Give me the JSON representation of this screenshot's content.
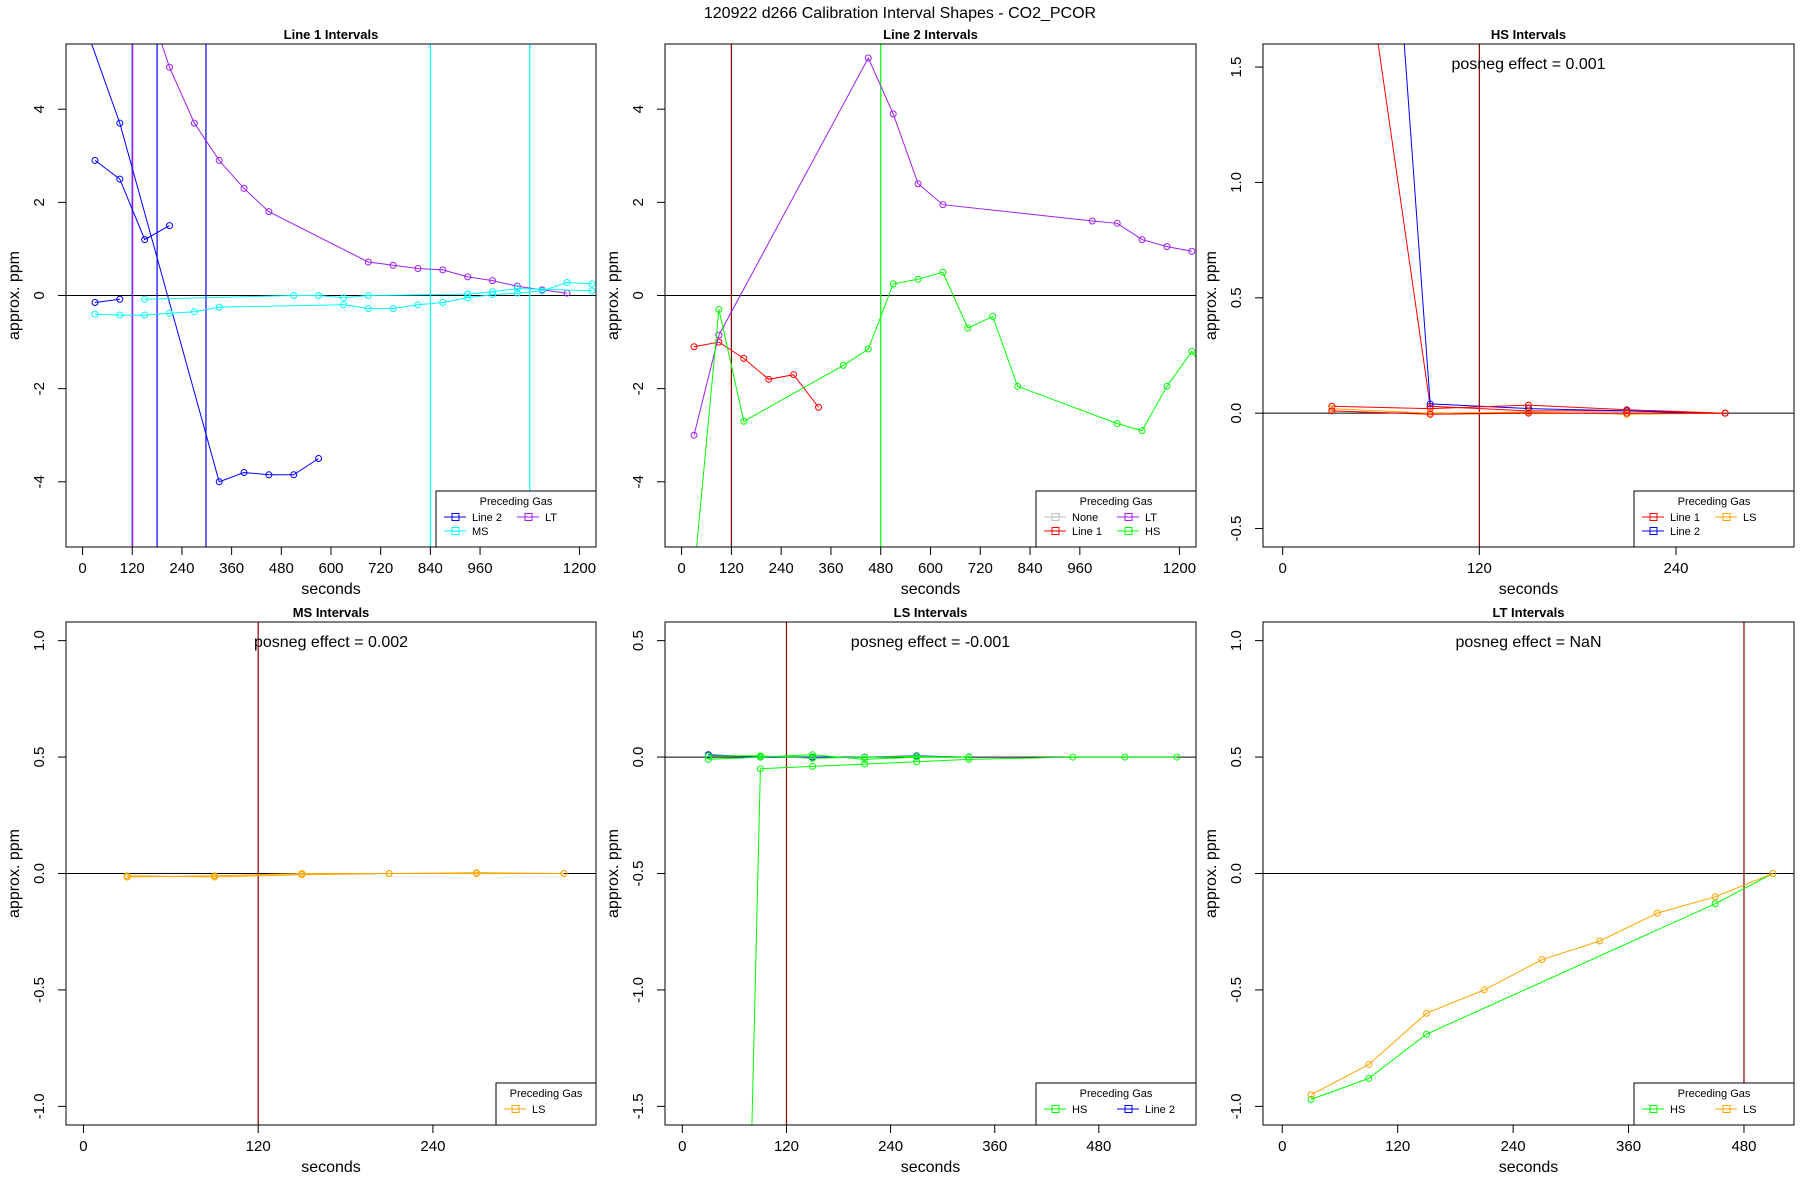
{
  "page": {
    "suptitle": "120922  d266   Calibration Interval Shapes - CO2_PCOR"
  },
  "colors": {
    "Line 1": "#ff0000",
    "Line 2": "#0000ff",
    "MS": "#00ffff",
    "LT": "#a020f0",
    "HS": "#00ff00",
    "LS": "#ffa500",
    "None": "#bebebe",
    "vline_dark": "#8b0000"
  },
  "chart_data": [
    {
      "type": "line",
      "title": "Line 1 Intervals",
      "xlabel": "seconds",
      "ylabel": "approx. ppm",
      "xlim": [
        -40,
        1240
      ],
      "ylim": [
        -5.4,
        5.4
      ],
      "xticks": [
        0,
        120,
        240,
        360,
        480,
        600,
        720,
        840,
        960,
        1200
      ],
      "yticks": [
        -4,
        -2,
        0,
        2,
        4
      ],
      "annotation": "",
      "vlines": [
        {
          "x": 120,
          "color": "#0000ff"
        },
        {
          "x": 121,
          "color": "#a020f0"
        },
        {
          "x": 180,
          "color": "#0000ff"
        },
        {
          "x": 298,
          "color": "#0000ff"
        },
        {
          "x": 840,
          "color": "#00ffff"
        },
        {
          "x": 1080,
          "color": "#00ffff"
        }
      ],
      "legend": {
        "title": "Preceding Gas",
        "cols": 2,
        "entries": [
          {
            "label": "Line 2",
            "color": "#0000ff"
          },
          {
            "label": "LT",
            "color": "#a020f0"
          },
          {
            "label": "MS",
            "color": "#00ffff"
          }
        ]
      },
      "series": [
        {
          "color": "#0000ff",
          "points": [
            [
              30,
              2.9
            ],
            [
              90,
              2.5
            ],
            [
              150,
              1.2
            ],
            [
              210,
              1.5
            ]
          ]
        },
        {
          "color": "#0000ff",
          "points": [
            [
              -10,
              6.2
            ],
            [
              90,
              3.7
            ],
            [
              330,
              -4.0
            ],
            [
              390,
              -3.8
            ],
            [
              450,
              -3.85
            ],
            [
              510,
              -3.85
            ],
            [
              570,
              -3.5
            ]
          ]
        },
        {
          "color": "#0000ff",
          "points": [
            [
              30,
              -0.15
            ],
            [
              90,
              -0.08
            ]
          ]
        },
        {
          "color": "#a020f0",
          "points": [
            [
              150,
              6.5
            ],
            [
              210,
              4.9
            ],
            [
              270,
              3.7
            ],
            [
              330,
              2.9
            ],
            [
              390,
              2.3
            ],
            [
              450,
              1.8
            ],
            [
              690,
              0.72
            ],
            [
              750,
              0.65
            ],
            [
              810,
              0.58
            ],
            [
              870,
              0.55
            ],
            [
              930,
              0.4
            ],
            [
              990,
              0.32
            ],
            [
              1050,
              0.2
            ],
            [
              1110,
              0.12
            ],
            [
              1170,
              0.05
            ]
          ]
        },
        {
          "color": "#00ffff",
          "points": [
            [
              30,
              -0.4
            ],
            [
              90,
              -0.42
            ],
            [
              150,
              -0.42
            ],
            [
              210,
              -0.38
            ],
            [
              270,
              -0.35
            ],
            [
              330,
              -0.25
            ],
            [
              630,
              -0.2
            ],
            [
              690,
              -0.28
            ],
            [
              750,
              -0.28
            ],
            [
              810,
              -0.2
            ],
            [
              870,
              -0.15
            ],
            [
              930,
              -0.05
            ],
            [
              990,
              0.02
            ],
            [
              1050,
              0.05
            ],
            [
              1110,
              0.1
            ],
            [
              1170,
              0.28
            ],
            [
              1230,
              0.25
            ]
          ]
        },
        {
          "color": "#00ffff",
          "points": [
            [
              150,
              -0.08
            ],
            [
              510,
              0.0
            ],
            [
              570,
              0.0
            ],
            [
              630,
              -0.05
            ],
            [
              690,
              0.0
            ],
            [
              930,
              0.03
            ],
            [
              990,
              0.08
            ],
            [
              1050,
              0.15
            ],
            [
              1230,
              0.1
            ]
          ]
        }
      ]
    },
    {
      "type": "line",
      "title": "Line 2 Intervals",
      "xlabel": "seconds",
      "ylabel": "approx. ppm",
      "xlim": [
        -40,
        1240
      ],
      "ylim": [
        -5.4,
        5.4
      ],
      "xticks": [
        0,
        120,
        240,
        360,
        480,
        600,
        720,
        840,
        960,
        1200
      ],
      "yticks": [
        -4,
        -2,
        0,
        2,
        4
      ],
      "annotation": "",
      "vlines": [
        {
          "x": 120,
          "color": "#8b0000"
        },
        {
          "x": 480,
          "color": "#00ff00"
        }
      ],
      "legend": {
        "title": "Preceding Gas",
        "cols": 2,
        "entries": [
          {
            "label": "None",
            "color": "#bebebe"
          },
          {
            "label": "LT",
            "color": "#a020f0"
          },
          {
            "label": "Line 1",
            "color": "#ff0000"
          },
          {
            "label": "HS",
            "color": "#00ff00"
          }
        ]
      },
      "series": [
        {
          "color": "#ff0000",
          "points": [
            [
              30,
              -1.1
            ],
            [
              90,
              -1.0
            ],
            [
              150,
              -1.35
            ],
            [
              210,
              -1.8
            ],
            [
              270,
              -1.7
            ],
            [
              330,
              -2.4
            ]
          ]
        },
        {
          "color": "#a020f0",
          "points": [
            [
              30,
              -3.0
            ],
            [
              90,
              -0.85
            ],
            [
              450,
              5.1
            ],
            [
              510,
              3.9
            ],
            [
              570,
              2.4
            ],
            [
              630,
              1.95
            ],
            [
              990,
              1.6
            ],
            [
              1050,
              1.55
            ],
            [
              1110,
              1.2
            ],
            [
              1170,
              1.05
            ],
            [
              1230,
              0.95
            ]
          ]
        },
        {
          "color": "#00ff00",
          "points": [
            [
              30,
              -6.0
            ],
            [
              90,
              -0.3
            ],
            [
              150,
              -2.7
            ],
            [
              390,
              -1.5
            ],
            [
              450,
              -1.15
            ],
            [
              510,
              0.25
            ],
            [
              570,
              0.35
            ],
            [
              630,
              0.5
            ],
            [
              690,
              -0.7
            ],
            [
              750,
              -0.45
            ],
            [
              810,
              -1.95
            ],
            [
              1050,
              -2.75
            ],
            [
              1110,
              -2.9
            ],
            [
              1170,
              -1.95
            ],
            [
              1230,
              -1.2
            ],
            [
              1260,
              -1.6
            ]
          ]
        }
      ]
    },
    {
      "type": "line",
      "title": "HS Intervals",
      "xlabel": "seconds",
      "ylabel": "approx. ppm",
      "xlim": [
        -12,
        312
      ],
      "ylim": [
        -0.58,
        1.6
      ],
      "xticks": [
        0,
        120,
        240
      ],
      "yticks": [
        -0.5,
        0.0,
        0.5,
        1.0,
        1.5
      ],
      "annotation": "posneg effect = 0.001",
      "vlines": [
        {
          "x": 120,
          "color": "#8b0000"
        }
      ],
      "legend": {
        "title": "Preceding Gas",
        "cols": 2,
        "entries": [
          {
            "label": "Line 1",
            "color": "#ff0000"
          },
          {
            "label": "LS",
            "color": "#ffa500"
          },
          {
            "label": "Line 2",
            "color": "#0000ff"
          }
        ]
      },
      "series": [
        {
          "color": "#ff0000",
          "points": [
            [
              30,
              3.0
            ],
            [
              90,
              0.03
            ],
            [
              150,
              0.01
            ],
            [
              210,
              0.01
            ],
            [
              270,
              0.0
            ]
          ]
        },
        {
          "color": "#0000ff",
          "points": [
            [
              60,
              3.0
            ],
            [
              90,
              0.04
            ],
            [
              150,
              0.02
            ],
            [
              210,
              0.01
            ],
            [
              270,
              0.0
            ]
          ]
        },
        {
          "color": "#ff0000",
          "points": [
            [
              30,
              0.03
            ],
            [
              90,
              0.02
            ],
            [
              150,
              0.035
            ],
            [
              210,
              0.015
            ],
            [
              270,
              0.0
            ]
          ]
        },
        {
          "color": "#ffa500",
          "points": [
            [
              30,
              0.02
            ],
            [
              90,
              0.0
            ],
            [
              150,
              0.005
            ],
            [
              210,
              -0.005
            ],
            [
              270,
              0.0
            ]
          ]
        },
        {
          "color": "#ff0000",
          "points": [
            [
              30,
              0.01
            ],
            [
              90,
              -0.005
            ],
            [
              150,
              0.0
            ],
            [
              210,
              0.0
            ],
            [
              270,
              0.0
            ]
          ]
        }
      ]
    },
    {
      "type": "line",
      "title": "MS Intervals",
      "xlabel": "seconds",
      "ylabel": "approx. ppm",
      "xlim": [
        -12,
        352
      ],
      "ylim": [
        -1.08,
        1.08
      ],
      "xticks": [
        0,
        120,
        240
      ],
      "yticks": [
        -1.0,
        -0.5,
        0.0,
        0.5,
        1.0
      ],
      "annotation": "posneg effect = 0.002",
      "vlines": [
        {
          "x": 120,
          "color": "#8b0000"
        }
      ],
      "legend": {
        "title": "Preceding Gas",
        "cols": 1,
        "entries": [
          {
            "label": "LS",
            "color": "#ffa500"
          }
        ]
      },
      "series": [
        {
          "color": "#ffa500",
          "points": [
            [
              30,
              -0.01
            ],
            [
              90,
              -0.015
            ],
            [
              150,
              -0.005
            ],
            [
              210,
              0.0
            ],
            [
              270,
              0.003
            ],
            [
              330,
              0.0
            ]
          ]
        },
        {
          "color": "#ffa500",
          "points": [
            [
              30,
              -0.015
            ],
            [
              90,
              -0.01
            ],
            [
              150,
              0.0
            ],
            [
              210,
              0.0
            ],
            [
              270,
              0.0
            ],
            [
              330,
              0.0
            ]
          ]
        }
      ]
    },
    {
      "type": "line",
      "title": "LS Intervals",
      "xlabel": "seconds",
      "ylabel": "approx. ppm",
      "xlim": [
        -20,
        592
      ],
      "ylim": [
        -1.58,
        0.58
      ],
      "xticks": [
        0,
        120,
        240,
        360,
        480
      ],
      "yticks": [
        -1.5,
        -1.0,
        -0.5,
        0.0,
        0.5
      ],
      "annotation": "posneg effect = -0.001",
      "vlines": [
        {
          "x": 120,
          "color": "#8b0000"
        }
      ],
      "legend": {
        "title": "Preceding Gas",
        "cols": 2,
        "entries": [
          {
            "label": "HS",
            "color": "#00ff00"
          },
          {
            "label": "Line 2",
            "color": "#0000ff"
          }
        ]
      },
      "series": [
        {
          "color": "#00ff00",
          "points": [
            [
              80,
              -1.6
            ],
            [
              90,
              -0.05
            ],
            [
              150,
              -0.04
            ],
            [
              210,
              -0.03
            ],
            [
              270,
              -0.02
            ],
            [
              330,
              -0.01
            ],
            [
              450,
              0.0
            ],
            [
              510,
              0.0
            ],
            [
              570,
              0.0
            ]
          ]
        },
        {
          "color": "#0000ff",
          "points": [
            [
              30,
              0.01
            ],
            [
              90,
              0.0
            ],
            [
              150,
              0.0
            ],
            [
              210,
              0.0
            ],
            [
              270,
              0.005
            ],
            [
              330,
              0.0
            ]
          ]
        },
        {
          "color": "#00ff00",
          "points": [
            [
              30,
              -0.01
            ],
            [
              90,
              0.0
            ],
            [
              150,
              0.01
            ],
            [
              210,
              -0.01
            ],
            [
              270,
              0.0
            ],
            [
              330,
              0.0
            ]
          ]
        },
        {
          "color": "#00ff00",
          "points": [
            [
              30,
              0.005
            ],
            [
              90,
              0.005
            ],
            [
              150,
              -0.005
            ],
            [
              210,
              0.0
            ],
            [
              270,
              0.003
            ],
            [
              330,
              0.0
            ]
          ]
        }
      ]
    },
    {
      "type": "line",
      "title": "LT Intervals",
      "xlabel": "seconds",
      "ylabel": "approx. ppm",
      "xlim": [
        -20,
        532
      ],
      "ylim": [
        -1.08,
        1.08
      ],
      "xticks": [
        0,
        120,
        240,
        360,
        480
      ],
      "yticks": [
        -1.0,
        -0.5,
        0.0,
        0.5,
        1.0
      ],
      "annotation": "posneg effect = NaN",
      "vlines": [
        {
          "x": 480,
          "color": "#8b0000"
        }
      ],
      "legend": {
        "title": "Preceding Gas",
        "cols": 2,
        "entries": [
          {
            "label": "HS",
            "color": "#00ff00"
          },
          {
            "label": "LS",
            "color": "#ffa500"
          }
        ]
      },
      "series": [
        {
          "color": "#00ff00",
          "points": [
            [
              30,
              -0.97
            ],
            [
              90,
              -0.88
            ],
            [
              150,
              -0.69
            ],
            [
              450,
              -0.13
            ],
            [
              510,
              0.0
            ]
          ]
        },
        {
          "color": "#ffa500",
          "points": [
            [
              30,
              -0.95
            ],
            [
              90,
              -0.82
            ],
            [
              150,
              -0.6
            ],
            [
              210,
              -0.5
            ],
            [
              270,
              -0.37
            ],
            [
              330,
              -0.29
            ],
            [
              390,
              -0.17
            ],
            [
              450,
              -0.1
            ],
            [
              510,
              0.0
            ]
          ]
        }
      ]
    }
  ]
}
